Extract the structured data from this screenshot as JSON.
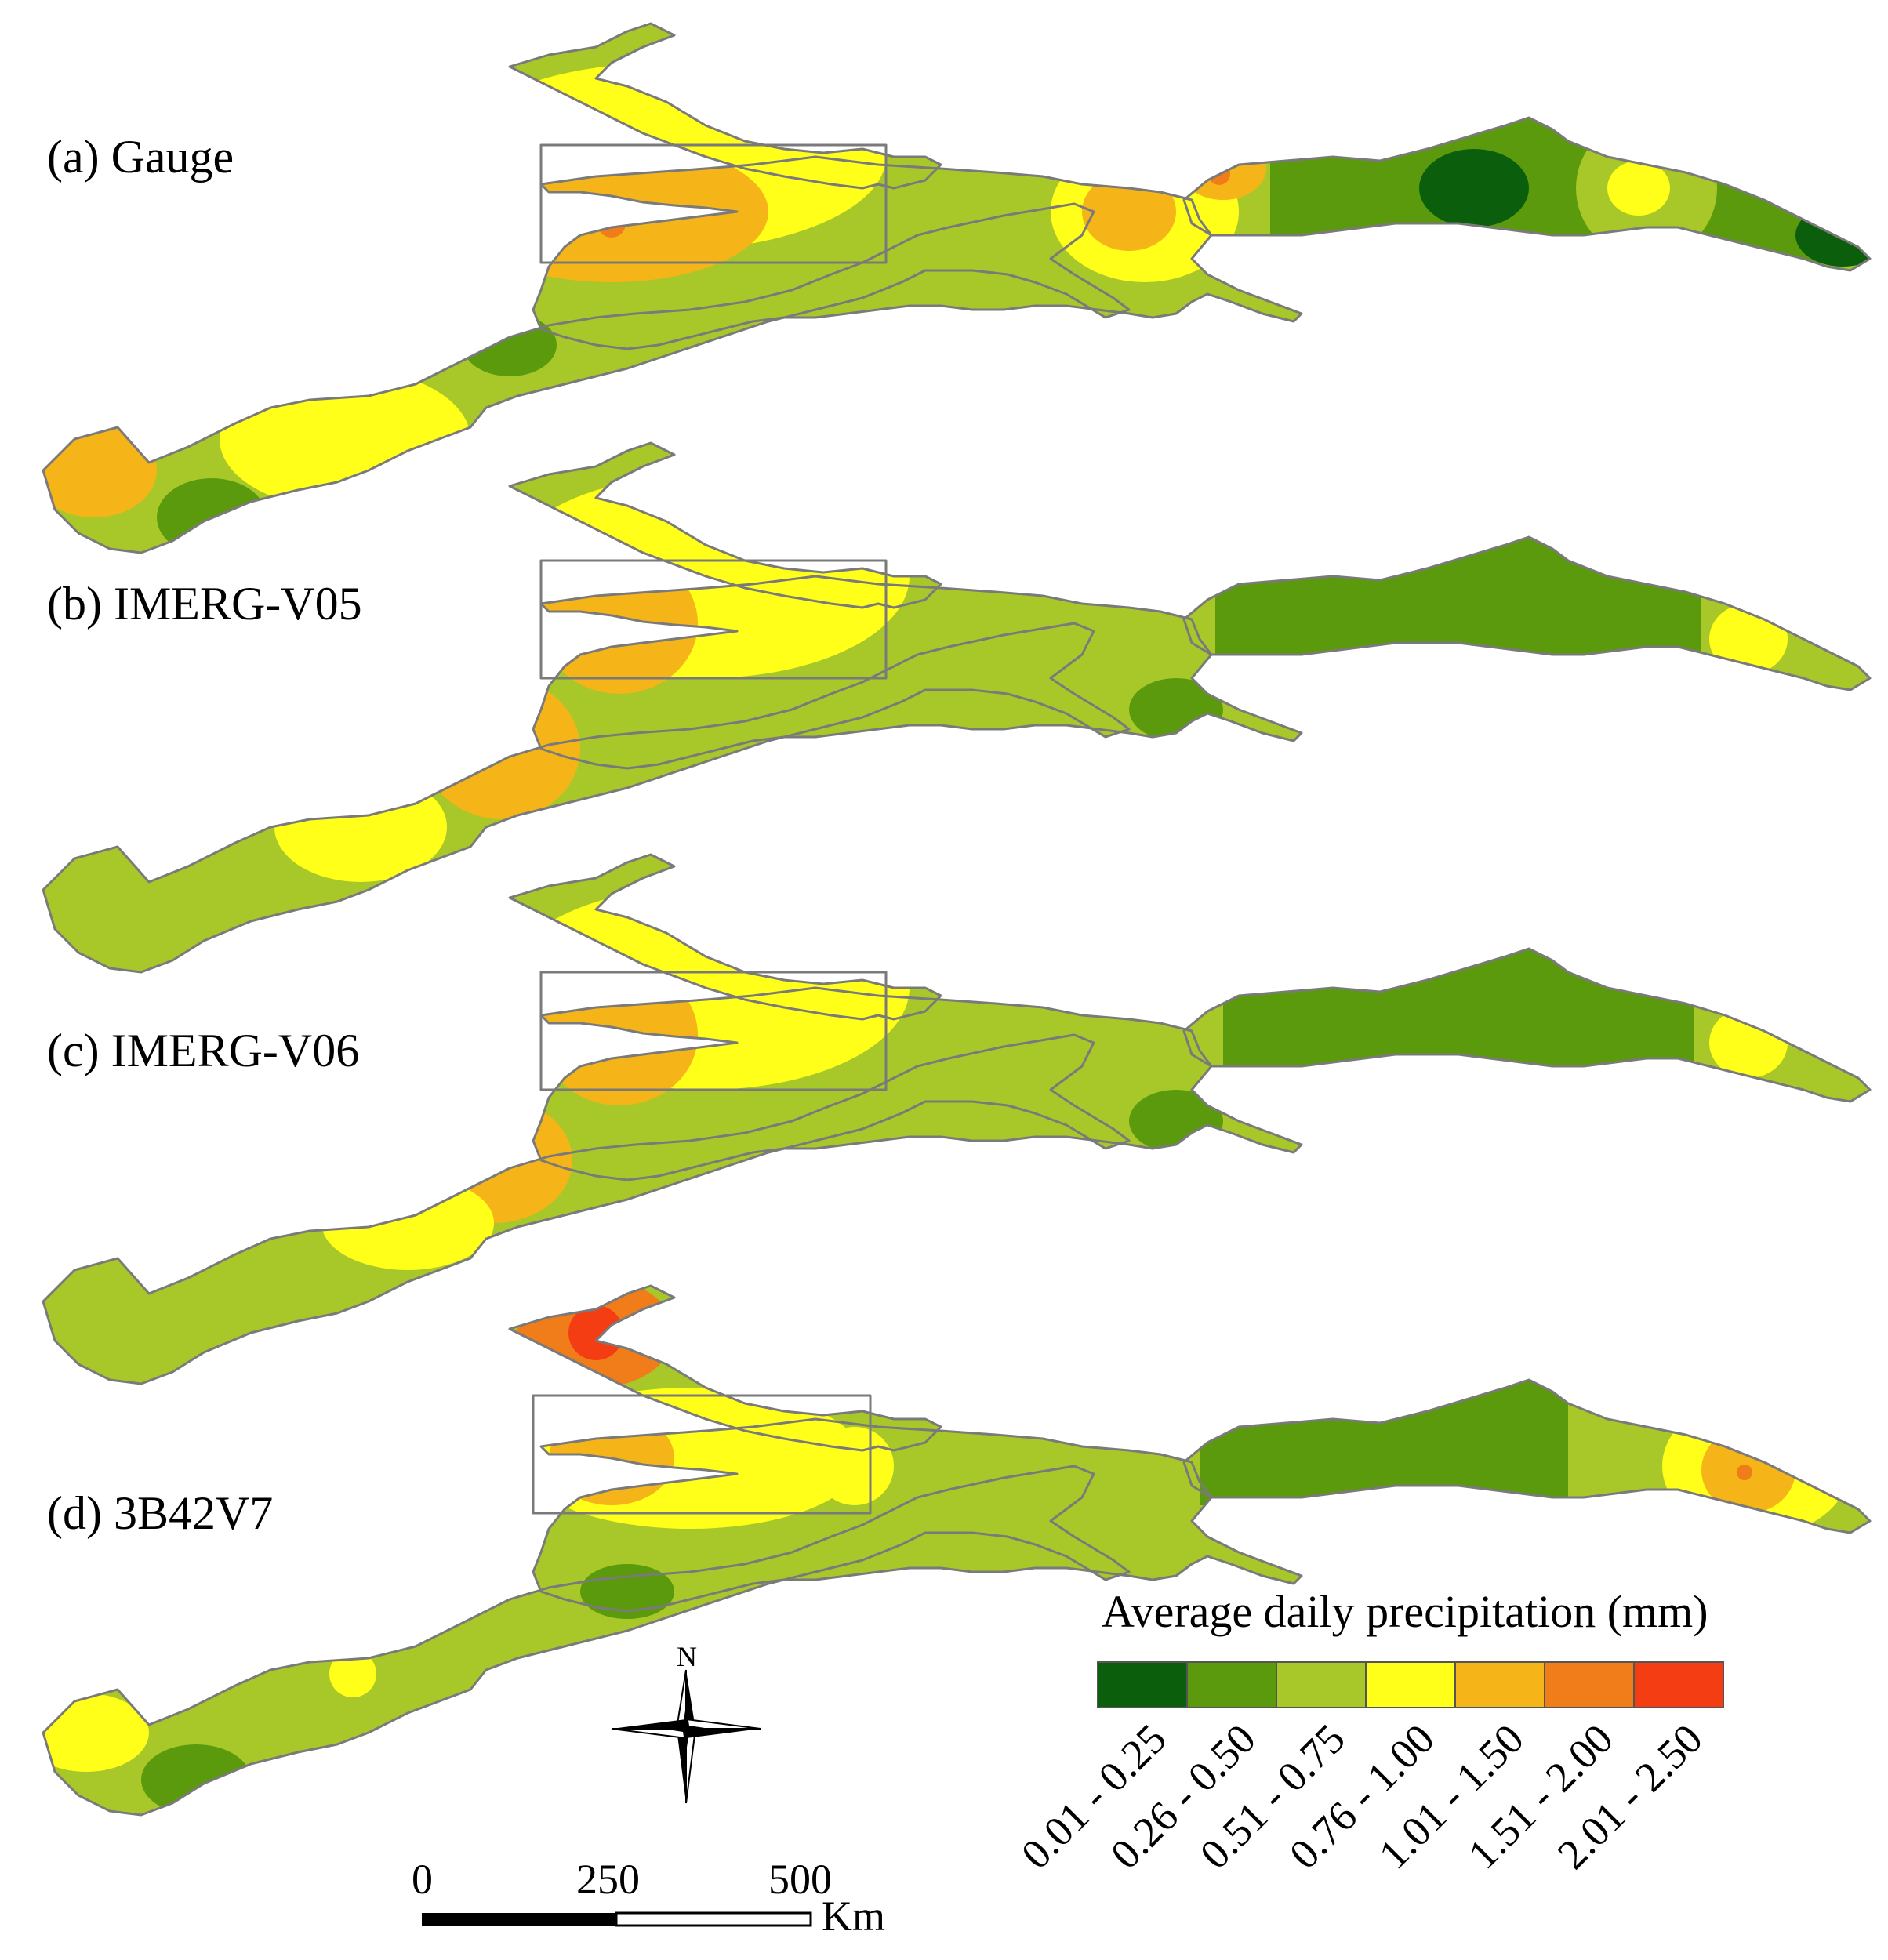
{
  "panels": [
    {
      "label": "(a) Gauge"
    },
    {
      "label": "(b) IMERG-V05"
    },
    {
      "label": "(c) IMERG-V06"
    },
    {
      "label": "(d) 3B42V7"
    }
  ],
  "legend": {
    "title": "Average daily precipitation (mm)",
    "classes": [
      {
        "label": "0.01 - 0.25",
        "color": "#0b5e0b"
      },
      {
        "label": "0.26 - 0.50",
        "color": "#5b9a0d"
      },
      {
        "label": "0.51 - 0.75",
        "color": "#a8c829"
      },
      {
        "label": "0.76 - 1.00",
        "color": "#ffff1a"
      },
      {
        "label": "1.01 - 1.50",
        "color": "#f5b418"
      },
      {
        "label": "1.51 - 2.00",
        "color": "#f07c1a"
      },
      {
        "label": "2.01 - 2.50",
        "color": "#f53d14"
      }
    ]
  },
  "scale_bar": {
    "labels": [
      "0",
      "250",
      "500"
    ],
    "unit": "Km"
  },
  "north_arrow": {
    "label": "N",
    "icon": "north-arrow-icon"
  }
}
